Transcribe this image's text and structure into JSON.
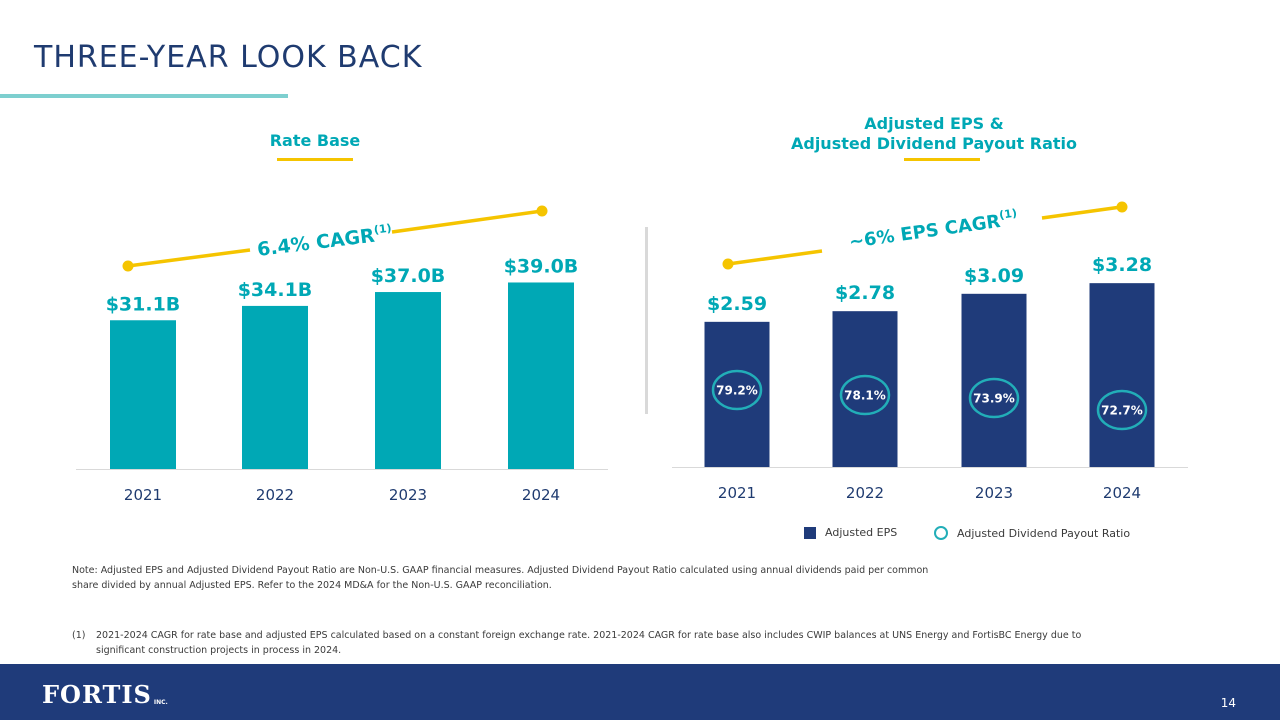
{
  "page": {
    "title": "THREE-YEAR LOOK BACK",
    "page_number": "14"
  },
  "brand": {
    "logo_text": "FORTIS",
    "logo_suffix": "INC.",
    "colors": {
      "navy": "#1f3b7a",
      "teal": "#00a8b5",
      "accent_yellow": "#f5c400"
    }
  },
  "chart_data": [
    {
      "type": "bar",
      "title": "Rate Base",
      "categories": [
        "2021",
        "2022",
        "2023",
        "2024"
      ],
      "values": [
        31.1,
        34.1,
        37.0,
        39.0
      ],
      "value_labels": [
        "$31.1B",
        "$34.1B",
        "$37.0B",
        "$39.0B"
      ],
      "unit": "B",
      "ylim": [
        0,
        46
      ],
      "cagr_label": "6.4% CAGR",
      "cagr_superscript": "(1)",
      "color": "#00a8b5"
    },
    {
      "type": "bar",
      "title_line1": "Adjusted EPS &",
      "title_line2": "Adjusted Dividend Payout Ratio",
      "categories": [
        "2021",
        "2022",
        "2023",
        "2024"
      ],
      "series": [
        {
          "name": "Adjusted EPS",
          "values": [
            2.59,
            2.78,
            3.09,
            3.28
          ]
        },
        {
          "name": "Adjusted Dividend Payout Ratio",
          "values": [
            79.2,
            78.1,
            73.9,
            72.7
          ]
        }
      ],
      "value_labels": [
        "$2.59",
        "$2.78",
        "$3.09",
        "$3.28"
      ],
      "payout_labels": [
        "79.2%",
        "78.1%",
        "73.9%",
        "72.7%"
      ],
      "ylim": [
        0,
        4.05
      ],
      "cagr_label": "~6% EPS CAGR",
      "cagr_superscript": "(1)",
      "legend": [
        "Adjusted EPS",
        "Adjusted Dividend Payout Ratio"
      ],
      "color": "#1f3b7a"
    }
  ],
  "notes": {
    "note": "Note: Adjusted EPS and Adjusted Dividend Payout Ratio are Non-U.S. GAAP financial measures. Adjusted Dividend Payout Ratio calculated using annual dividends paid per common share divided by annual Adjusted EPS. Refer to the 2024 MD&A for the Non-U.S. GAAP reconciliation.",
    "footnote_mark": "(1)",
    "footnote": "2021-2024 CAGR for rate base and adjusted EPS calculated based on a constant foreign exchange rate. 2021-2024 CAGR for rate base also includes CWIP balances at UNS Energy and FortisBC Energy due to significant construction projects in process in 2024."
  }
}
